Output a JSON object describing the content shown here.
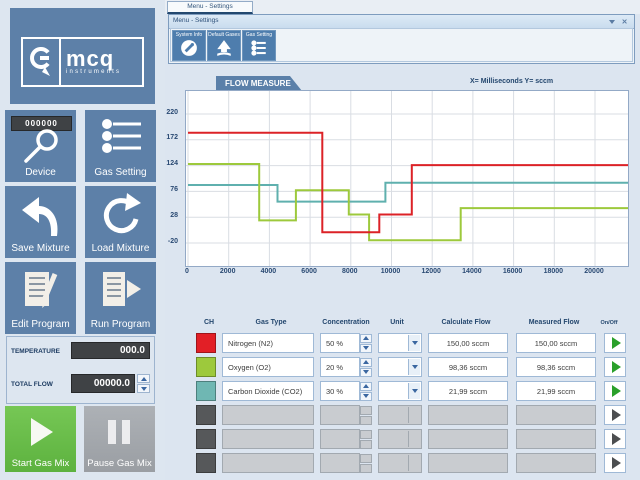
{
  "window": {
    "tab_title": "Menu - Settings",
    "title": "Menu - Settings",
    "toolbar": [
      {
        "label": "System Info"
      },
      {
        "label": "Default Gases"
      },
      {
        "label": "Gas Setting"
      }
    ]
  },
  "sidebar": {
    "brand": {
      "logo_text": "mcq",
      "logo_sub": "instruments"
    },
    "device_counter": "000000",
    "tiles": [
      {
        "label": "Device"
      },
      {
        "label": "Gas Setting"
      },
      {
        "label": "Save Mixture"
      },
      {
        "label": "Load Mixture"
      },
      {
        "label": "Edit Program"
      },
      {
        "label": "Run Program"
      }
    ],
    "readouts": {
      "temperature_label": "TEMPERATURE",
      "temperature_value": "000.0",
      "total_flow_label": "TOTAL FLOW",
      "total_flow_value": "00000.0"
    },
    "start_label": "Start Gas Mix",
    "pause_label": "Pause Gas Mix"
  },
  "chart": {
    "ribbon": "FLOW MEASURE",
    "axis_note": "X= Milliseconds  Y= sccm"
  },
  "chart_data": {
    "type": "line",
    "step": true,
    "title": "FLOW MEASURE",
    "xlabel": "Milliseconds",
    "ylabel": "sccm",
    "xlim": [
      0,
      21650
    ],
    "ylim": [
      -63,
      263
    ],
    "grid": true,
    "legend_position": "none",
    "x_ticks": [
      0,
      2000,
      4000,
      6000,
      8000,
      10000,
      12000,
      14000,
      16000,
      18000,
      20000
    ],
    "y_ticks": [
      220,
      172,
      124,
      76,
      28,
      -20
    ],
    "series": [
      {
        "name": "Nitrogen (N2)",
        "color": "#dc2227",
        "points": [
          [
            0,
            185
          ],
          [
            6600,
            185
          ],
          [
            6600,
            0
          ],
          [
            9400,
            0
          ],
          [
            9400,
            33
          ],
          [
            11000,
            33
          ],
          [
            11000,
            125
          ],
          [
            21650,
            125
          ]
        ]
      },
      {
        "name": "Oxygen (O2)",
        "color": "#9dc93c",
        "points": [
          [
            0,
            127
          ],
          [
            3500,
            127
          ],
          [
            3500,
            22
          ],
          [
            5300,
            22
          ],
          [
            5300,
            78
          ],
          [
            7900,
            78
          ],
          [
            7900,
            33
          ],
          [
            8900,
            33
          ],
          [
            8900,
            -15
          ],
          [
            13400,
            -15
          ],
          [
            13400,
            45
          ],
          [
            21650,
            45
          ]
        ]
      },
      {
        "name": "Carbon Dioxide (CO2)",
        "color": "#5fb0ae",
        "points": [
          [
            0,
            88
          ],
          [
            4400,
            88
          ],
          [
            4400,
            57
          ],
          [
            9700,
            57
          ],
          [
            9700,
            92
          ],
          [
            21650,
            92
          ]
        ]
      }
    ]
  },
  "table": {
    "headers": [
      "CH",
      "Gas Type",
      "Concentration",
      "Unit",
      "Calculate Flow",
      "Measured Flow",
      "On/Off"
    ],
    "rows": [
      {
        "color": "#e21f26",
        "gas": "Nitrogen (N2)",
        "concentration": "50 %",
        "unit": "",
        "calculate": "150,00 sccm",
        "measured": "150,00 sccm",
        "empty": false
      },
      {
        "color": "#9dc93c",
        "gas": "Oxygen (O2)",
        "concentration": "20 %",
        "unit": "",
        "calculate": "98,36 sccm",
        "measured": "98,36 sccm",
        "empty": false
      },
      {
        "color": "#6fb7b3",
        "gas": "Carbon Dioxide (CO2)",
        "concentration": "30 %",
        "unit": "",
        "calculate": "21,99 sccm",
        "measured": "21,99 sccm",
        "empty": false
      },
      {
        "color": "#56585a",
        "gas": "",
        "concentration": "",
        "unit": "",
        "calculate": "",
        "measured": "",
        "empty": true
      },
      {
        "color": "#56585a",
        "gas": "",
        "concentration": "",
        "unit": "",
        "calculate": "",
        "measured": "",
        "empty": true
      },
      {
        "color": "#56585a",
        "gas": "",
        "concentration": "",
        "unit": "",
        "calculate": "",
        "measured": "",
        "empty": true
      }
    ]
  }
}
